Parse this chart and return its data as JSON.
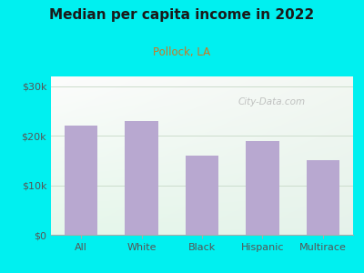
{
  "title": "Median per capita income in 2022",
  "subtitle": "Pollock, LA",
  "categories": [
    "All",
    "White",
    "Black",
    "Hispanic",
    "Multirace"
  ],
  "values": [
    22000,
    23000,
    16000,
    19000,
    15000
  ],
  "bar_color": "#b8a8d0",
  "background_outer": "#00f0f0",
  "title_color": "#1a1a1a",
  "subtitle_color": "#cc6600",
  "axis_label_color": "#555555",
  "tick_label_color": "#555555",
  "ylim": [
    0,
    32000
  ],
  "yticks": [
    0,
    10000,
    20000,
    30000
  ],
  "ytick_labels": [
    "$0",
    "$10k",
    "$20k",
    "$30k"
  ],
  "watermark": "City-Data.com",
  "grid_color": "#ccddcc",
  "gradient_colors": [
    "#e8f5e8",
    "#f8fff8",
    "#ffffff"
  ],
  "gradient_top_color": "#e0eeee"
}
